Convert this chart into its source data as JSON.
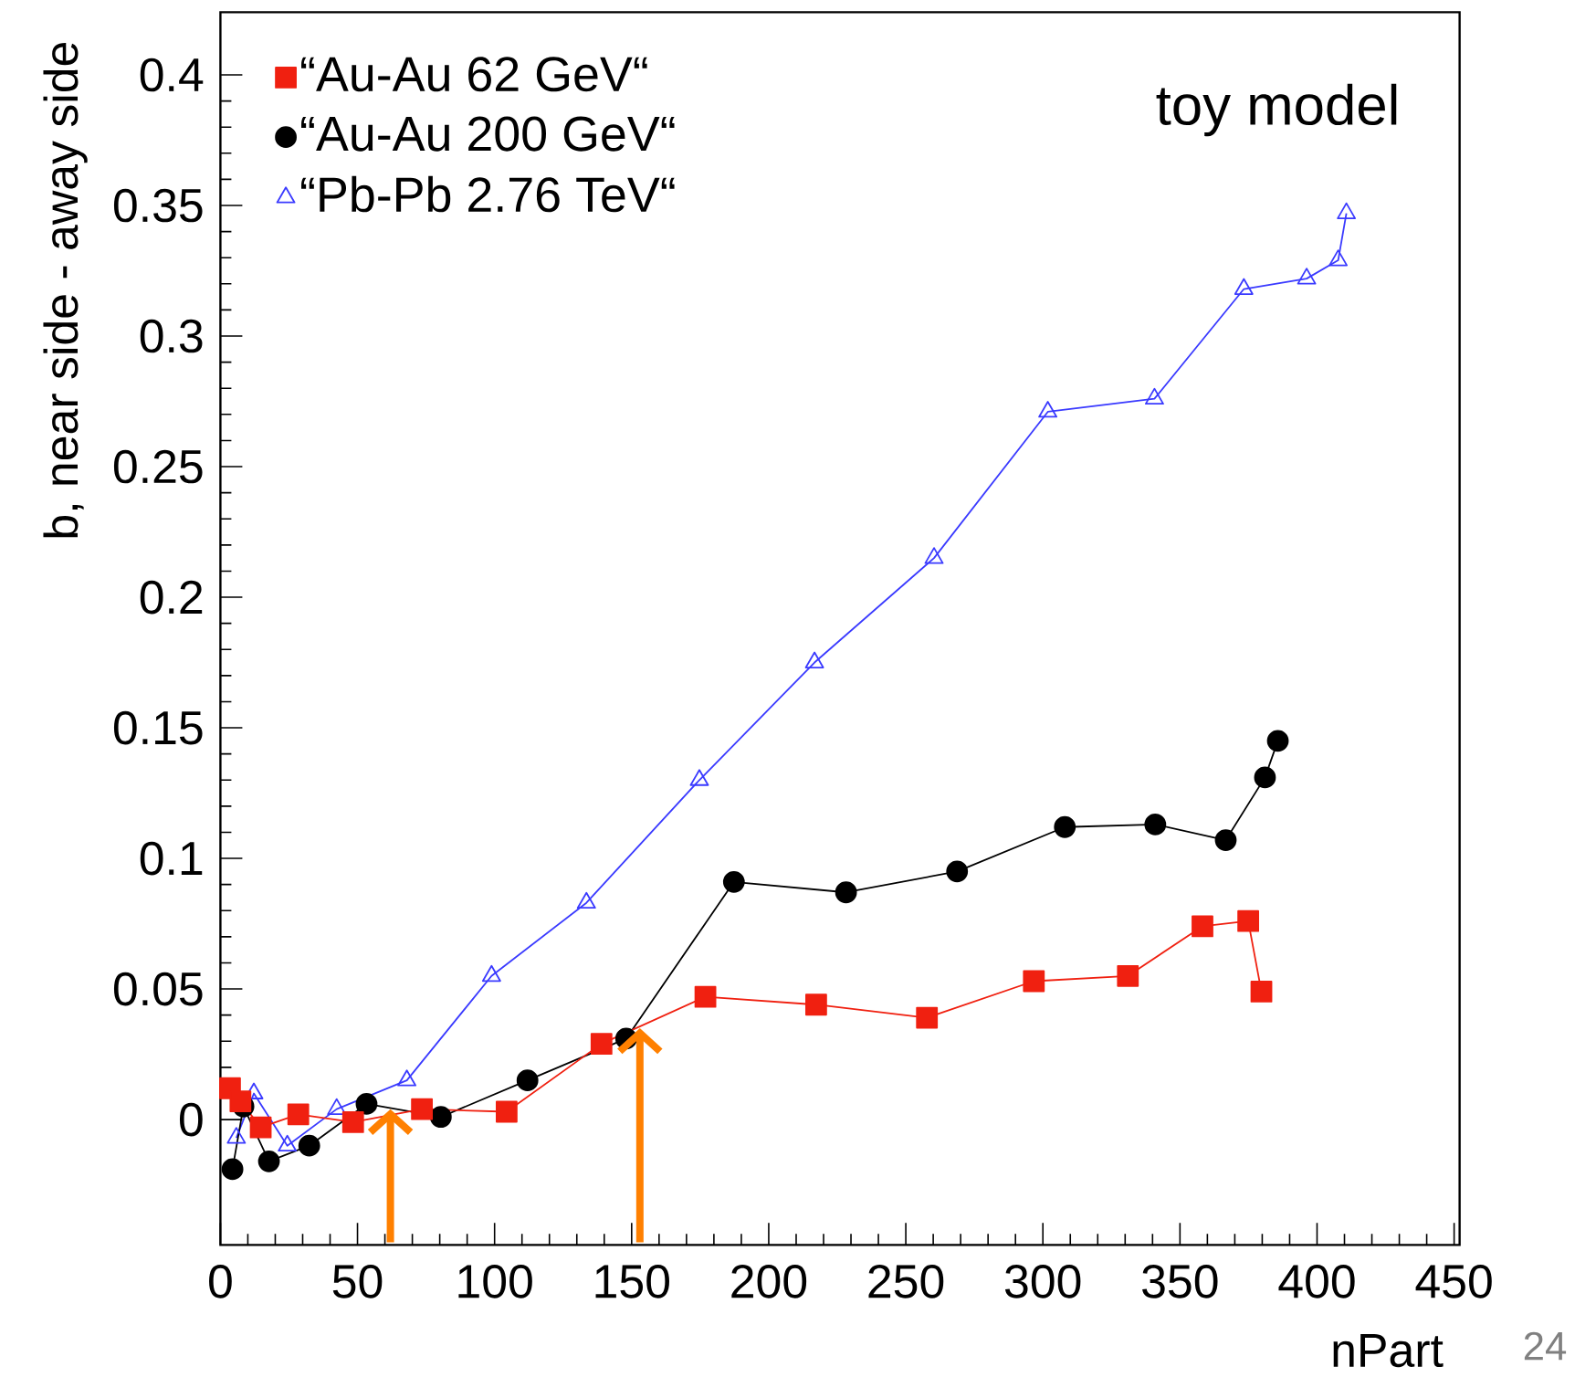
{
  "chart_data": {
    "type": "line",
    "xlabel": "nPart",
    "ylabel": "b, near side - away side",
    "annotations": [
      "toy model",
      "24"
    ],
    "xlim": [
      0,
      452
    ],
    "ylim": [
      -0.048,
      0.424
    ],
    "xticks": [
      0,
      50,
      100,
      150,
      200,
      250,
      300,
      350,
      400,
      450
    ],
    "yticks": [
      0,
      0.05,
      0.1,
      0.15,
      0.2,
      0.25,
      0.3,
      0.35,
      0.4
    ],
    "legend": "top left",
    "series": [
      {
        "name": "“Au-Au 62 GeV“",
        "color": "#f02010",
        "marker": "square",
        "x": [
          3.5,
          7.3,
          14.7,
          28.4,
          48.4,
          73.5,
          104.4,
          139,
          176.9,
          217.3,
          257.7,
          296.7,
          331,
          358.2,
          374.9,
          379.7
        ],
        "values": [
          0.012,
          0.007,
          -0.003,
          0.002,
          -0.001,
          0.004,
          0.003,
          0.029,
          0.047,
          0.044,
          0.039,
          0.053,
          0.055,
          0.074,
          0.076,
          0.049
        ]
      },
      {
        "name": "“Au-Au 200 GeV“",
        "color": "#000000",
        "marker": "circle",
        "x": [
          4.4,
          8.4,
          17.7,
          32.4,
          53.3,
          80.4,
          112,
          148,
          187.3,
          228.2,
          268.7,
          308,
          341,
          366.7,
          381,
          385.7
        ],
        "values": [
          -0.019,
          0.005,
          -0.016,
          -0.01,
          0.006,
          0.001,
          0.015,
          0.031,
          0.091,
          0.087,
          0.095,
          0.112,
          0.113,
          0.107,
          0.131,
          0.145
        ]
      },
      {
        "name": "“Pb-Pb 2.76 TeV“",
        "color": "#3a3aff",
        "marker": "triangle",
        "x": [
          5.8,
          12.2,
          24.4,
          42.4,
          68,
          98.9,
          133.5,
          174.7,
          216.7,
          260.3,
          301.8,
          340.7,
          373.3,
          396.2,
          407.7,
          410.7
        ],
        "values": [
          -0.007,
          0.01,
          -0.01,
          0.004,
          0.015,
          0.055,
          0.083,
          0.13,
          0.175,
          0.215,
          0.271,
          0.276,
          0.318,
          0.322,
          0.329,
          0.347
        ]
      }
    ]
  }
}
